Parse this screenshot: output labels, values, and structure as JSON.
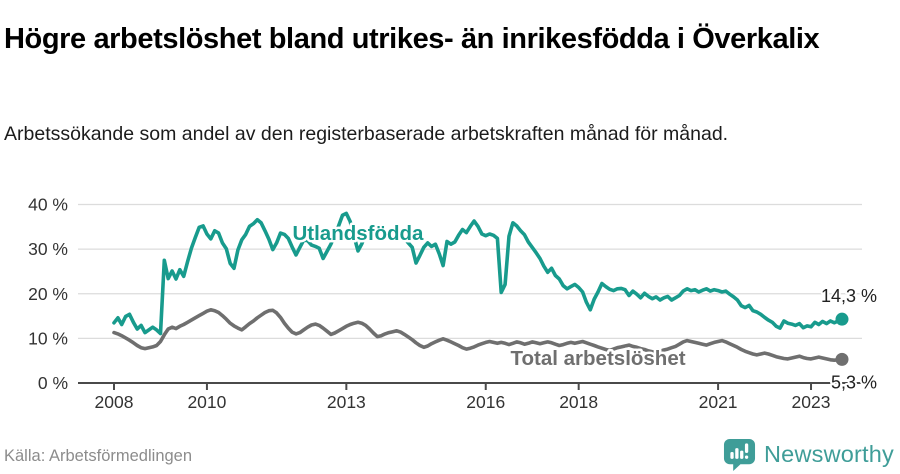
{
  "header": {
    "title": "Högre arbetslöshet bland utrikes- än inrikesfödda i Överkalix",
    "subtitle": "Arbetssökande som andel av den registerbaserade arbetskraften månad för månad."
  },
  "chart_data": {
    "type": "line",
    "x_interval": "monthly",
    "x_start": "2008-01",
    "x_end": "2023-09",
    "ylim": [
      0,
      40
    ],
    "grid": "horizontal",
    "yticks": [
      {
        "label": "0 %",
        "value": 0
      },
      {
        "label": "10 %",
        "value": 10
      },
      {
        "label": "20 %",
        "value": 20
      },
      {
        "label": "30 %",
        "value": 30
      },
      {
        "label": "40 %",
        "value": 40
      }
    ],
    "xticks": [
      {
        "label": "2008",
        "month": 0
      },
      {
        "label": "2010",
        "month": 24
      },
      {
        "label": "2013",
        "month": 60
      },
      {
        "label": "2016",
        "month": 96
      },
      {
        "label": "2018",
        "month": 120
      },
      {
        "label": "2021",
        "month": 156
      },
      {
        "label": "2023",
        "month": 180
      }
    ],
    "series": [
      {
        "name": "Utlandsfödda",
        "color": "#189b8d",
        "end_label": "14,3 %",
        "end_value": 14.3,
        "label_month": 63,
        "label_value": 32.0,
        "values": [
          13.5,
          14.6,
          13.1,
          14.9,
          15.4,
          13.6,
          12.1,
          12.9,
          11.3,
          11.9,
          12.5,
          11.9,
          11.1,
          27.5,
          23.4,
          25.1,
          23.3,
          25.4,
          23.9,
          27.2,
          30.2,
          32.6,
          34.9,
          35.2,
          33.4,
          32.3,
          34.1,
          33.6,
          31.4,
          30.1,
          26.8,
          25.7,
          29.8,
          32.1,
          33.3,
          35.1,
          35.7,
          36.6,
          35.9,
          34.1,
          32.2,
          29.9,
          31.4,
          33.6,
          33.3,
          32.4,
          30.5,
          28.7,
          30.4,
          32.0,
          31.9,
          30.9,
          30.6,
          30.2,
          27.9,
          29.5,
          31.1,
          33.0,
          35.2,
          37.6,
          38.0,
          36.2,
          32.8,
          29.6,
          31.2,
          33.4,
          32.6,
          33.7,
          32.3,
          33.0,
          33.9,
          33.4,
          33.0,
          32.1,
          33.4,
          32.4,
          31.4,
          30.4,
          26.9,
          28.6,
          30.4,
          31.4,
          30.6,
          31.1,
          28.9,
          26.3,
          31.7,
          31.1,
          31.6,
          33.1,
          34.4,
          33.7,
          35.1,
          36.3,
          35.1,
          33.4,
          33.0,
          33.4,
          33.1,
          32.4,
          20.3,
          22.1,
          32.9,
          35.9,
          35.2,
          34.1,
          33.2,
          31.6,
          30.4,
          29.2,
          27.9,
          26.2,
          24.8,
          25.7,
          24.1,
          23.3,
          21.8,
          21.1,
          21.6,
          22.1,
          21.4,
          20.4,
          18.1,
          16.4,
          18.8,
          20.4,
          22.3,
          21.6,
          21.0,
          20.7,
          21.1,
          21.2,
          20.9,
          19.6,
          20.6,
          19.9,
          19.1,
          20.1,
          19.4,
          18.9,
          19.3,
          18.6,
          19.1,
          19.4,
          18.6,
          19.1,
          19.6,
          20.6,
          21.1,
          20.7,
          20.9,
          20.4,
          20.8,
          21.1,
          20.6,
          20.9,
          20.7,
          20.4,
          20.6,
          19.9,
          19.3,
          18.6,
          17.3,
          16.9,
          17.4,
          16.2,
          15.9,
          15.4,
          14.7,
          14.1,
          13.6,
          12.7,
          12.3,
          13.9,
          13.4,
          13.2,
          12.9,
          13.3,
          12.4,
          12.8,
          12.6,
          13.6,
          13.1,
          13.8,
          13.3,
          13.9,
          13.5,
          13.9,
          14.3
        ]
      },
      {
        "name": "Total arbetslöshet",
        "color": "#6f6f6f",
        "end_label": "5,3 %",
        "end_value": 5.3,
        "label_month": 125,
        "label_value": 4.0,
        "values": [
          11.3,
          11.0,
          10.6,
          10.1,
          9.6,
          9.0,
          8.4,
          7.9,
          7.7,
          7.9,
          8.1,
          8.4,
          9.3,
          10.8,
          12.1,
          12.5,
          12.2,
          12.7,
          13.1,
          13.6,
          14.1,
          14.6,
          15.1,
          15.6,
          16.1,
          16.4,
          16.2,
          15.8,
          15.1,
          14.3,
          13.4,
          12.8,
          12.3,
          11.9,
          12.6,
          13.3,
          13.9,
          14.6,
          15.2,
          15.8,
          16.2,
          16.3,
          15.7,
          14.7,
          13.4,
          12.3,
          11.4,
          11.0,
          11.3,
          11.9,
          12.5,
          13.0,
          13.2,
          12.9,
          12.3,
          11.6,
          10.9,
          11.2,
          11.7,
          12.2,
          12.7,
          13.1,
          13.4,
          13.6,
          13.4,
          12.9,
          12.1,
          11.2,
          10.4,
          10.6,
          11.0,
          11.3,
          11.5,
          11.7,
          11.4,
          10.9,
          10.3,
          9.7,
          9.0,
          8.4,
          8.0,
          8.3,
          8.8,
          9.2,
          9.6,
          9.9,
          9.6,
          9.2,
          8.8,
          8.4,
          7.9,
          7.6,
          7.8,
          8.1,
          8.5,
          8.8,
          9.1,
          9.3,
          9.1,
          8.9,
          9.1,
          8.9,
          8.6,
          8.9,
          9.2,
          9.0,
          8.7,
          8.9,
          9.2,
          9.0,
          8.8,
          9.0,
          9.2,
          9.0,
          8.7,
          8.4,
          8.6,
          8.9,
          9.1,
          8.9,
          9.1,
          9.3,
          9.0,
          8.7,
          8.4,
          8.1,
          7.8,
          7.5,
          7.3,
          7.6,
          7.9,
          8.1,
          8.3,
          8.5,
          8.2,
          8.0,
          7.7,
          7.5,
          7.2,
          7.0,
          6.9,
          7.1,
          7.4,
          7.6,
          7.9,
          8.2,
          8.7,
          9.2,
          9.5,
          9.3,
          9.1,
          8.9,
          8.7,
          8.5,
          8.8,
          9.1,
          9.3,
          9.5,
          9.2,
          8.8,
          8.4,
          8.0,
          7.5,
          7.1,
          6.8,
          6.5,
          6.3,
          6.5,
          6.7,
          6.5,
          6.2,
          5.9,
          5.7,
          5.5,
          5.4,
          5.6,
          5.8,
          6.0,
          5.7,
          5.5,
          5.4,
          5.6,
          5.8,
          5.6,
          5.4,
          5.2,
          5.1,
          5.2,
          5.3
        ]
      }
    ],
    "colors": {
      "grid": "#dcdcdc",
      "axis": "#4a4a4a",
      "tick_label": "#333333",
      "annotation_text": "#212121",
      "brand_teal": "#3F9D98"
    }
  },
  "footer": {
    "source": "Källa: Arbetsförmedlingen",
    "brand": "Newsworthy"
  }
}
